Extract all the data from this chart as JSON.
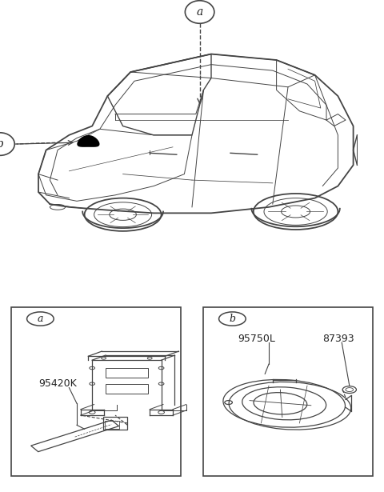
{
  "bg_color": "#ffffff",
  "line_color": "#444444",
  "text_color": "#222222",
  "fig_width": 4.8,
  "fig_height": 6.15,
  "label_a": "a",
  "label_b": "b",
  "part_a_label": "95420K",
  "part_b1_label": "95750L",
  "part_b2_label": "87393"
}
